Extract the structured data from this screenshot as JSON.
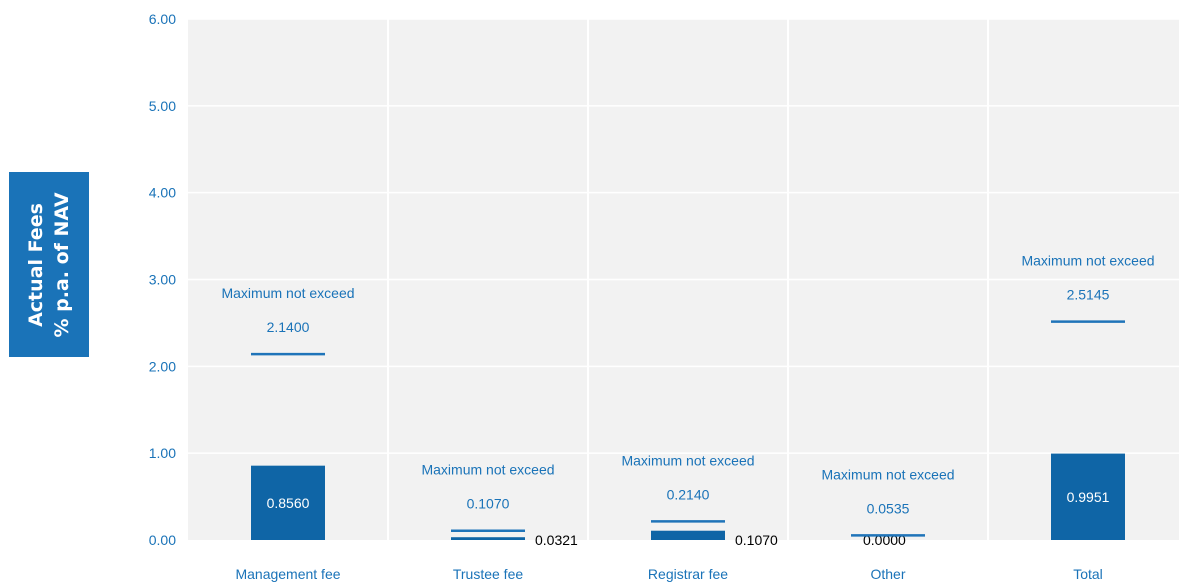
{
  "chart_data": {
    "type": "bar",
    "ylabel_lines": [
      "Actual Fees",
      "% p.a. of NAV"
    ],
    "ylim": [
      0,
      6
    ],
    "yticks": [
      "0.00",
      "1.00",
      "2.00",
      "3.00",
      "4.00",
      "5.00",
      "6.00"
    ],
    "grid": true,
    "categories": [
      "Management fee",
      "Trustee fee",
      "Registrar fee",
      "Other",
      "Total"
    ],
    "values": [
      0.856,
      0.0321,
      0.107,
      0.0,
      0.9951
    ],
    "value_labels": [
      "0.8560",
      "0.0321",
      "0.1070",
      "0.0000",
      "0.9951"
    ],
    "max_values": [
      2.14,
      0.107,
      0.214,
      0.0535,
      2.5145
    ],
    "max_labels": [
      "2.1400",
      "0.1070",
      "0.2140",
      "0.0535",
      "2.5145"
    ],
    "max_caption": "Maximum not exceed"
  },
  "colors": {
    "bar": "#0f65a6",
    "max_line": "#1f74b9",
    "axis_text": "#1a73b8",
    "plot_bg": "#f2f2f2",
    "grid": "#ffffff",
    "label_box": "#1a73b8"
  }
}
